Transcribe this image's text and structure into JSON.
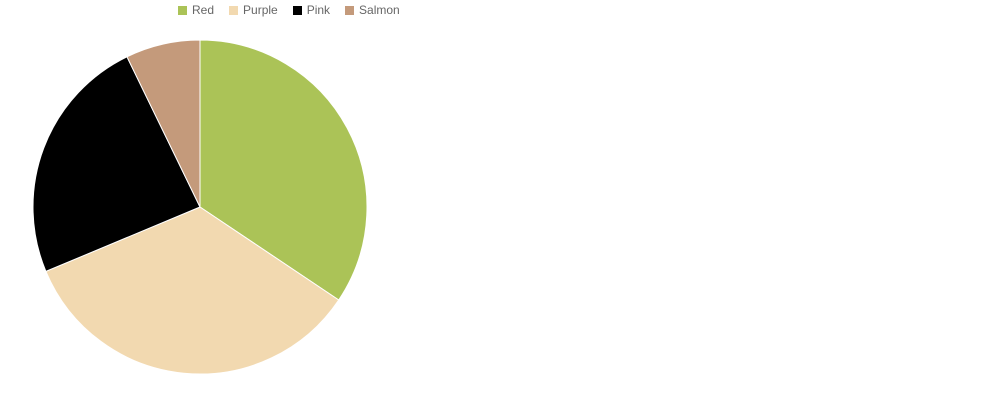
{
  "chart_data": {
    "type": "pie",
    "legend_position": "top",
    "slices": [
      {
        "label": "Red",
        "value": 34.4,
        "color": "#abc357"
      },
      {
        "label": "Purple",
        "value": 34.3,
        "color": "#f2d9b0"
      },
      {
        "label": "Pink",
        "value": 24.1,
        "color": "#000000"
      },
      {
        "label": "Salmon",
        "value": 7.2,
        "color": "#c49a7b"
      }
    ]
  }
}
